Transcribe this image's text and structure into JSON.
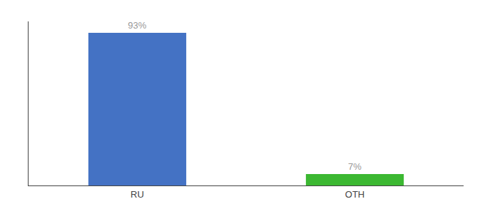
{
  "chart_data": {
    "type": "bar",
    "categories": [
      "RU",
      "OTH"
    ],
    "values": [
      93,
      7
    ],
    "value_labels": [
      "93%",
      "7%"
    ],
    "colors": [
      "#4472c4",
      "#3cb832"
    ],
    "ylim": [
      0,
      100
    ],
    "grid": false,
    "data_labels": true,
    "tick_labels": "x"
  }
}
